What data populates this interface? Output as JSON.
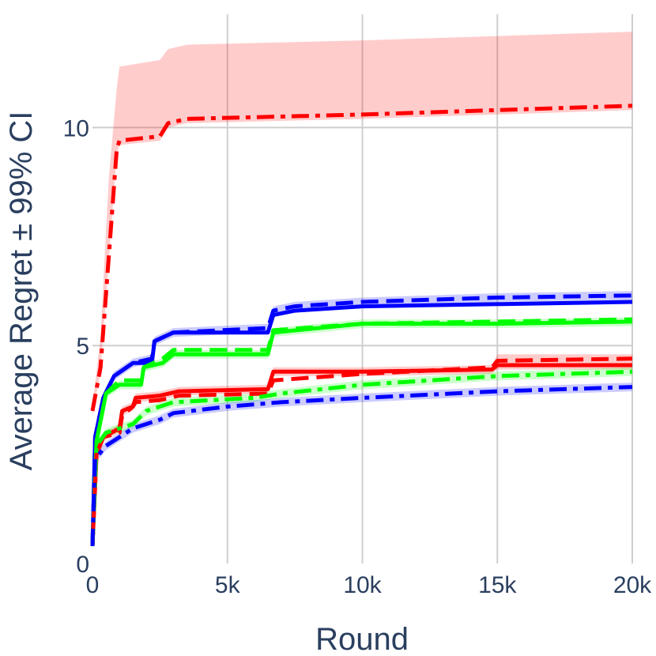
{
  "chart_data": {
    "type": "line",
    "title": "",
    "xlabel": "Round",
    "ylabel": "Average Regret ± 99% CI",
    "xlim": [
      0,
      20000
    ],
    "ylim": [
      0,
      12.6
    ],
    "x_ticks": [
      0,
      5000,
      10000,
      15000,
      20000
    ],
    "x_tick_labels": [
      "0",
      "5k",
      "10k",
      "15k",
      "20k"
    ],
    "y_ticks": [
      0,
      5,
      10
    ],
    "y_tick_labels": [
      "0",
      "5",
      "10"
    ],
    "grid": true,
    "legend": "none",
    "colors": {
      "red": "#ff0000",
      "blue": "#0000ff",
      "green": "#00ff00"
    },
    "series": [
      {
        "color": "#ff0000",
        "dash": "dashdot",
        "band_color": "rgba(255,0,0,0.2)",
        "points": [
          [
            0,
            3.5
          ],
          [
            300,
            4.5
          ],
          [
            600,
            7.0
          ],
          [
            900,
            9.5
          ],
          [
            1000,
            9.7
          ],
          [
            2500,
            9.8
          ],
          [
            2800,
            10.1
          ],
          [
            3500,
            10.2
          ],
          [
            10000,
            10.3
          ],
          [
            15000,
            10.4
          ],
          [
            20000,
            10.5
          ]
        ],
        "upper": [
          [
            0,
            3.6
          ],
          [
            300,
            5.2
          ],
          [
            600,
            8.8
          ],
          [
            900,
            10.9
          ],
          [
            1000,
            11.4
          ],
          [
            2500,
            11.55
          ],
          [
            2800,
            11.8
          ],
          [
            3500,
            11.9
          ],
          [
            10000,
            12.0
          ],
          [
            15000,
            12.1
          ],
          [
            20000,
            12.2
          ]
        ],
        "lower": [
          [
            0,
            3.4
          ],
          [
            300,
            4.4
          ],
          [
            600,
            6.9
          ],
          [
            900,
            9.4
          ],
          [
            1000,
            9.6
          ],
          [
            2500,
            9.7
          ],
          [
            2800,
            10.0
          ],
          [
            3500,
            10.1
          ],
          [
            10000,
            10.2
          ],
          [
            15000,
            10.3
          ],
          [
            20000,
            10.4
          ]
        ]
      },
      {
        "color": "#0000ff",
        "dash": "dash",
        "band_color": "rgba(0,0,255,0.2)",
        "points": [
          [
            0,
            0.4
          ],
          [
            100,
            2.9
          ],
          [
            400,
            3.8
          ],
          [
            800,
            4.3
          ],
          [
            1500,
            4.6
          ],
          [
            2200,
            4.7
          ],
          [
            2300,
            5.1
          ],
          [
            3000,
            5.3
          ],
          [
            6500,
            5.4
          ],
          [
            6700,
            5.8
          ],
          [
            7500,
            5.9
          ],
          [
            10000,
            6.0
          ],
          [
            15000,
            6.1
          ],
          [
            20000,
            6.15
          ]
        ],
        "upper": [
          [
            0,
            0.5
          ],
          [
            100,
            3.0
          ],
          [
            400,
            3.9
          ],
          [
            800,
            4.4
          ],
          [
            1500,
            4.7
          ],
          [
            2200,
            4.8
          ],
          [
            2300,
            5.2
          ],
          [
            3000,
            5.4
          ],
          [
            6500,
            5.5
          ],
          [
            6700,
            5.9
          ],
          [
            7500,
            6.0
          ],
          [
            10000,
            6.1
          ],
          [
            15000,
            6.2
          ],
          [
            20000,
            6.25
          ]
        ],
        "lower": [
          [
            0,
            0.3
          ],
          [
            100,
            2.8
          ],
          [
            400,
            3.7
          ],
          [
            800,
            4.2
          ],
          [
            1500,
            4.5
          ],
          [
            2200,
            4.6
          ],
          [
            2300,
            5.0
          ],
          [
            3000,
            5.2
          ],
          [
            6500,
            5.3
          ],
          [
            6700,
            5.7
          ],
          [
            7500,
            5.8
          ],
          [
            10000,
            5.9
          ],
          [
            15000,
            6.0
          ],
          [
            20000,
            6.05
          ]
        ]
      },
      {
        "color": "#0000ff",
        "dash": "solid",
        "band_color": "rgba(0,0,255,0.2)",
        "points": [
          [
            0,
            0.4
          ],
          [
            100,
            2.9
          ],
          [
            400,
            3.8
          ],
          [
            800,
            4.3
          ],
          [
            1500,
            4.6
          ],
          [
            2200,
            4.6
          ],
          [
            2300,
            5.1
          ],
          [
            3000,
            5.3
          ],
          [
            6500,
            5.3
          ],
          [
            6700,
            5.7
          ],
          [
            7500,
            5.8
          ],
          [
            10000,
            5.9
          ],
          [
            15000,
            5.95
          ],
          [
            20000,
            6.0
          ]
        ]
      },
      {
        "color": "#00ff00",
        "dash": "solid",
        "band_color": "rgba(0,255,0,0.2)",
        "points": [
          [
            0,
            0.4
          ],
          [
            150,
            2.8
          ],
          [
            500,
            3.9
          ],
          [
            1000,
            4.1
          ],
          [
            1800,
            4.1
          ],
          [
            1900,
            4.5
          ],
          [
            2600,
            4.6
          ],
          [
            3000,
            4.8
          ],
          [
            6500,
            4.8
          ],
          [
            6700,
            5.3
          ],
          [
            10000,
            5.5
          ],
          [
            15000,
            5.5
          ],
          [
            20000,
            5.55
          ]
        ],
        "upper": [
          [
            0,
            0.5
          ],
          [
            150,
            2.9
          ],
          [
            500,
            4.0
          ],
          [
            1000,
            4.2
          ],
          [
            1800,
            4.2
          ],
          [
            1900,
            4.6
          ],
          [
            2600,
            4.7
          ],
          [
            3000,
            4.9
          ],
          [
            6500,
            4.9
          ],
          [
            6700,
            5.4
          ],
          [
            10000,
            5.6
          ],
          [
            15000,
            5.6
          ],
          [
            20000,
            5.65
          ]
        ],
        "lower": [
          [
            0,
            0.3
          ],
          [
            150,
            2.7
          ],
          [
            500,
            3.8
          ],
          [
            1000,
            4.0
          ],
          [
            1800,
            4.0
          ],
          [
            1900,
            4.4
          ],
          [
            2600,
            4.5
          ],
          [
            3000,
            4.7
          ],
          [
            6500,
            4.7
          ],
          [
            6700,
            5.2
          ],
          [
            10000,
            5.4
          ],
          [
            15000,
            5.4
          ],
          [
            20000,
            5.45
          ]
        ]
      },
      {
        "color": "#00ff00",
        "dash": "dash",
        "band_color": "rgba(0,255,0,0.2)",
        "points": [
          [
            0,
            0.4
          ],
          [
            150,
            2.8
          ],
          [
            500,
            3.9
          ],
          [
            1000,
            4.2
          ],
          [
            1800,
            4.2
          ],
          [
            1900,
            4.5
          ],
          [
            2600,
            4.7
          ],
          [
            3000,
            4.9
          ],
          [
            6500,
            4.9
          ],
          [
            6700,
            5.35
          ],
          [
            10000,
            5.5
          ],
          [
            15000,
            5.55
          ],
          [
            20000,
            5.6
          ]
        ]
      },
      {
        "color": "#ff0000",
        "dash": "solid",
        "band_color": "rgba(255,0,0,0.2)",
        "points": [
          [
            0,
            0.4
          ],
          [
            150,
            2.5
          ],
          [
            400,
            2.9
          ],
          [
            1000,
            3.1
          ],
          [
            1100,
            3.5
          ],
          [
            1500,
            3.6
          ],
          [
            1600,
            3.8
          ],
          [
            2500,
            3.85
          ],
          [
            3200,
            3.95
          ],
          [
            6500,
            4.0
          ],
          [
            6700,
            4.4
          ],
          [
            10000,
            4.4
          ],
          [
            14800,
            4.45
          ],
          [
            15000,
            4.55
          ],
          [
            20000,
            4.55
          ]
        ],
        "upper": [
          [
            0,
            0.5
          ],
          [
            150,
            2.6
          ],
          [
            400,
            3.0
          ],
          [
            1000,
            3.2
          ],
          [
            1100,
            3.6
          ],
          [
            1500,
            3.7
          ],
          [
            1600,
            3.9
          ],
          [
            2500,
            3.95
          ],
          [
            3200,
            4.05
          ],
          [
            6500,
            4.1
          ],
          [
            6700,
            4.5
          ],
          [
            10000,
            4.5
          ],
          [
            14800,
            4.55
          ],
          [
            15000,
            4.8
          ],
          [
            20000,
            4.8
          ]
        ],
        "lower": [
          [
            0,
            0.3
          ],
          [
            150,
            2.4
          ],
          [
            400,
            2.8
          ],
          [
            1000,
            3.0
          ],
          [
            1100,
            3.4
          ],
          [
            1500,
            3.5
          ],
          [
            1600,
            3.7
          ],
          [
            2500,
            3.75
          ],
          [
            3200,
            3.85
          ],
          [
            6500,
            3.9
          ],
          [
            6700,
            4.3
          ],
          [
            10000,
            4.3
          ],
          [
            14800,
            4.35
          ],
          [
            15000,
            4.45
          ],
          [
            20000,
            4.45
          ]
        ]
      },
      {
        "color": "#ff0000",
        "dash": "dash",
        "band_color": "rgba(255,0,0,0.2)",
        "points": [
          [
            0,
            0.4
          ],
          [
            150,
            2.5
          ],
          [
            400,
            2.9
          ],
          [
            1000,
            3.0
          ],
          [
            1100,
            3.4
          ],
          [
            1500,
            3.6
          ],
          [
            1600,
            3.7
          ],
          [
            2500,
            3.75
          ],
          [
            3200,
            3.85
          ],
          [
            6500,
            3.9
          ],
          [
            6700,
            4.2
          ],
          [
            10000,
            4.35
          ],
          [
            14800,
            4.5
          ],
          [
            15000,
            4.65
          ],
          [
            20000,
            4.7
          ]
        ]
      },
      {
        "color": "#00ff00",
        "dash": "dashdot",
        "band_color": "rgba(0,255,0,0.2)",
        "points": [
          [
            0,
            0.4
          ],
          [
            150,
            2.7
          ],
          [
            500,
            3.0
          ],
          [
            1000,
            3.1
          ],
          [
            1500,
            3.2
          ],
          [
            2000,
            3.5
          ],
          [
            3000,
            3.7
          ],
          [
            6000,
            3.8
          ],
          [
            7000,
            3.9
          ],
          [
            10000,
            4.1
          ],
          [
            15000,
            4.3
          ],
          [
            20000,
            4.4
          ]
        ],
        "upper": [
          [
            0,
            0.5
          ],
          [
            150,
            2.8
          ],
          [
            500,
            3.1
          ],
          [
            1000,
            3.2
          ],
          [
            1500,
            3.3
          ],
          [
            2000,
            3.6
          ],
          [
            3000,
            3.8
          ],
          [
            6000,
            3.9
          ],
          [
            7000,
            4.0
          ],
          [
            10000,
            4.2
          ],
          [
            15000,
            4.4
          ],
          [
            20000,
            4.5
          ]
        ],
        "lower": [
          [
            0,
            0.3
          ],
          [
            150,
            2.6
          ],
          [
            500,
            2.9
          ],
          [
            1000,
            3.0
          ],
          [
            1500,
            3.1
          ],
          [
            2000,
            3.4
          ],
          [
            3000,
            3.6
          ],
          [
            6000,
            3.7
          ],
          [
            7000,
            3.8
          ],
          [
            10000,
            4.0
          ],
          [
            15000,
            4.2
          ],
          [
            20000,
            4.3
          ]
        ]
      },
      {
        "color": "#0000ff",
        "dash": "dashdot",
        "band_color": "rgba(0,0,255,0.2)",
        "points": [
          [
            0,
            0.4
          ],
          [
            100,
            2.4
          ],
          [
            500,
            2.7
          ],
          [
            1000,
            2.9
          ],
          [
            1500,
            3.1
          ],
          [
            2500,
            3.3
          ],
          [
            3000,
            3.45
          ],
          [
            5000,
            3.6
          ],
          [
            7000,
            3.7
          ],
          [
            10000,
            3.8
          ],
          [
            15000,
            3.95
          ],
          [
            20000,
            4.05
          ]
        ],
        "upper": [
          [
            0,
            0.5
          ],
          [
            100,
            2.5
          ],
          [
            500,
            2.8
          ],
          [
            1000,
            3.0
          ],
          [
            1500,
            3.2
          ],
          [
            2500,
            3.4
          ],
          [
            3000,
            3.55
          ],
          [
            5000,
            3.7
          ],
          [
            7000,
            3.8
          ],
          [
            10000,
            3.9
          ],
          [
            15000,
            4.05
          ],
          [
            20000,
            4.15
          ]
        ],
        "lower": [
          [
            0,
            0.3
          ],
          [
            100,
            2.3
          ],
          [
            500,
            2.6
          ],
          [
            1000,
            2.8
          ],
          [
            1500,
            3.0
          ],
          [
            2500,
            3.2
          ],
          [
            3000,
            3.35
          ],
          [
            5000,
            3.5
          ],
          [
            7000,
            3.6
          ],
          [
            10000,
            3.7
          ],
          [
            15000,
            3.85
          ],
          [
            20000,
            3.95
          ]
        ]
      }
    ]
  }
}
